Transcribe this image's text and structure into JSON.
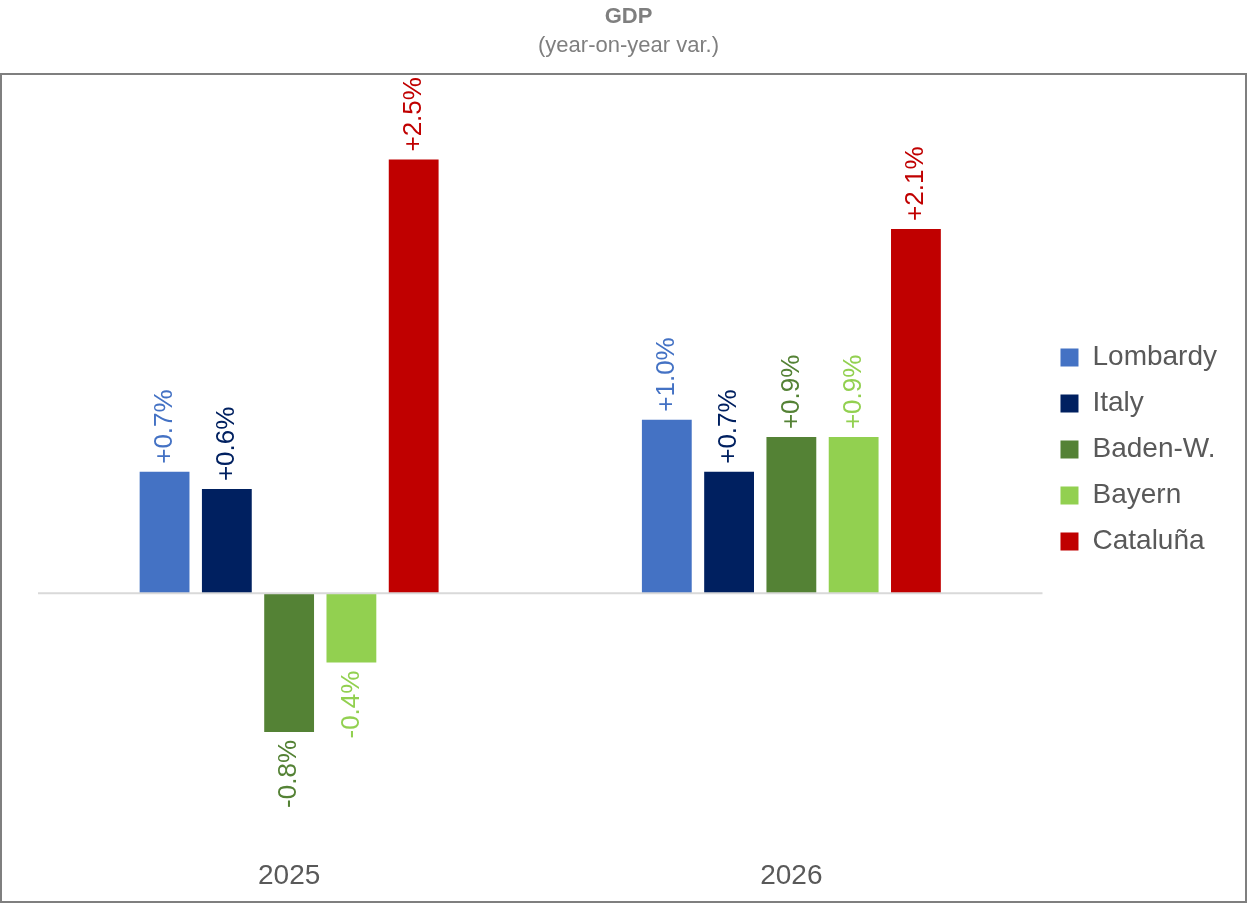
{
  "chart_data": {
    "type": "bar",
    "title": "GDP",
    "subtitle": "(year-on-year var.)",
    "categories": [
      "2025",
      "2026"
    ],
    "legend": "right",
    "grid": false,
    "series": [
      {
        "name": "Lombardy",
        "color": "#4472c4",
        "values": [
          0.7,
          1.0
        ],
        "value_labels": [
          "+0.7%",
          "+1.0%"
        ]
      },
      {
        "name": "Italy",
        "color": "#002060",
        "values": [
          0.6,
          0.7
        ],
        "value_labels": [
          "+0.6%",
          "+0.7%"
        ]
      },
      {
        "name": "Baden-W.",
        "color": "#548235",
        "values": [
          -0.8,
          0.9
        ],
        "value_labels": [
          "-0.8%",
          "+0.9%"
        ]
      },
      {
        "name": "Bayern",
        "color": "#92d050",
        "values": [
          -0.4,
          0.9
        ],
        "value_labels": [
          "-0.4%",
          "+0.9%"
        ]
      },
      {
        "name": "Cataluña",
        "color": "#c00000",
        "values": [
          2.5,
          2.1
        ],
        "value_labels": [
          "+2.5%",
          "+2.1%"
        ]
      }
    ]
  }
}
